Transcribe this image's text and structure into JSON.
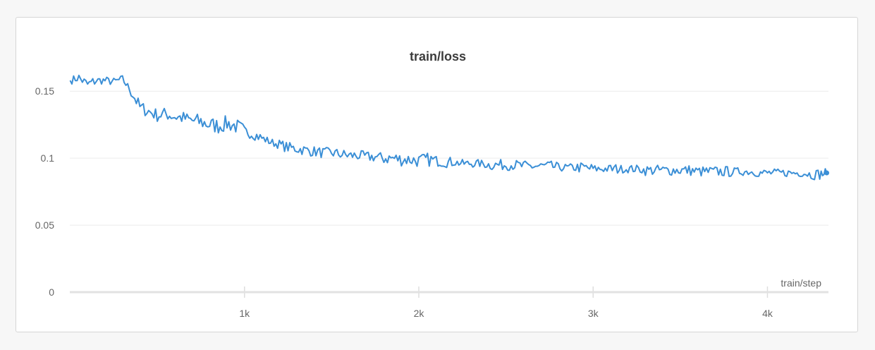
{
  "chart_data": {
    "type": "line",
    "title": "train/loss",
    "xlabel": "train/step",
    "ylabel": "",
    "xlim": [
      0,
      4350
    ],
    "ylim": [
      0,
      0.16
    ],
    "grid": true,
    "legend": "none",
    "y_ticks": [
      {
        "value": 0,
        "label": "0"
      },
      {
        "value": 0.05,
        "label": "0.05"
      },
      {
        "value": 0.1,
        "label": "0.1"
      },
      {
        "value": 0.15,
        "label": "0.15"
      }
    ],
    "x_ticks": [
      {
        "value": 1000,
        "label": "1k"
      },
      {
        "value": 2000,
        "label": "2k"
      },
      {
        "value": 3000,
        "label": "3k"
      },
      {
        "value": 4000,
        "label": "4k"
      }
    ],
    "series": [
      {
        "color": "#3b8fd6",
        "x": [
          0,
          50,
          100,
          150,
          200,
          250,
          300,
          350,
          400,
          450,
          500,
          550,
          600,
          650,
          700,
          750,
          800,
          850,
          900,
          950,
          1000,
          1050,
          1100,
          1150,
          1200,
          1250,
          1300,
          1350,
          1400,
          1450,
          1500,
          1550,
          1600,
          1650,
          1700,
          1750,
          1800,
          1850,
          1900,
          1950,
          2000,
          2050,
          2100,
          2150,
          2200,
          2250,
          2300,
          2350,
          2400,
          2450,
          2500,
          2550,
          2600,
          2650,
          2700,
          2750,
          2800,
          2850,
          2900,
          2950,
          3000,
          3050,
          3100,
          3150,
          3200,
          3250,
          3300,
          3350,
          3400,
          3450,
          3500,
          3550,
          3600,
          3650,
          3700,
          3750,
          3800,
          3850,
          3900,
          3950,
          4000,
          4050,
          4100,
          4150,
          4200,
          4250,
          4300,
          4340
        ],
        "y": [
          0.158,
          0.16,
          0.155,
          0.158,
          0.158,
          0.157,
          0.159,
          0.15,
          0.138,
          0.135,
          0.132,
          0.133,
          0.131,
          0.13,
          0.128,
          0.127,
          0.125,
          0.124,
          0.126,
          0.124,
          0.12,
          0.118,
          0.115,
          0.112,
          0.11,
          0.108,
          0.107,
          0.106,
          0.105,
          0.104,
          0.104,
          0.103,
          0.102,
          0.102,
          0.101,
          0.101,
          0.1,
          0.1,
          0.099,
          0.099,
          0.098,
          0.099,
          0.098,
          0.097,
          0.097,
          0.096,
          0.096,
          0.096,
          0.095,
          0.095,
          0.095,
          0.095,
          0.094,
          0.094,
          0.094,
          0.094,
          0.093,
          0.093,
          0.093,
          0.093,
          0.092,
          0.092,
          0.092,
          0.092,
          0.092,
          0.092,
          0.091,
          0.091,
          0.091,
          0.091,
          0.091,
          0.091,
          0.09,
          0.09,
          0.09,
          0.09,
          0.09,
          0.09,
          0.09,
          0.089,
          0.089,
          0.089,
          0.089,
          0.089,
          0.089,
          0.088,
          0.088,
          0.089
        ],
        "noise": [
          0.003,
          0.004,
          0.004,
          0.003,
          0.003,
          0.003,
          0.003,
          0.005,
          0.005,
          0.005,
          0.005,
          0.005,
          0.005,
          0.005,
          0.006,
          0.006,
          0.006,
          0.006,
          0.006,
          0.006,
          0.004,
          0.004,
          0.003,
          0.003,
          0.004,
          0.004,
          0.004,
          0.004,
          0.004,
          0.004,
          0.004,
          0.004,
          0.004,
          0.004,
          0.004,
          0.004,
          0.005,
          0.005,
          0.005,
          0.005,
          0.005,
          0.005,
          0.004,
          0.004,
          0.003,
          0.003,
          0.003,
          0.003,
          0.004,
          0.004,
          0.004,
          0.004,
          0.004,
          0.004,
          0.004,
          0.004,
          0.003,
          0.003,
          0.004,
          0.004,
          0.003,
          0.003,
          0.004,
          0.003,
          0.003,
          0.003,
          0.004,
          0.004,
          0.004,
          0.004,
          0.004,
          0.004,
          0.004,
          0.004,
          0.004,
          0.004,
          0.003,
          0.003,
          0.003,
          0.003,
          0.003,
          0.003,
          0.003,
          0.003,
          0.003,
          0.004,
          0.004,
          0.003
        ]
      }
    ]
  }
}
